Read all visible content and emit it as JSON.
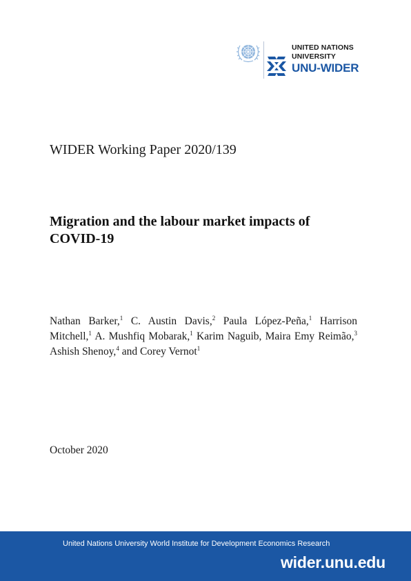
{
  "logo": {
    "emblem_icon": "un-emblem-icon",
    "unu_mark_icon": "unu-wider-mark-icon",
    "line1": "UNITED NATIONS",
    "line2": "UNIVERSITY",
    "line3": "UNU-WIDER",
    "emblem_color": "#8fb5dd",
    "brand_color": "#1b57a4"
  },
  "document": {
    "series": "WIDER Working Paper 2020/139",
    "title": "Migration and the labour market impacts of COVID-19",
    "authors": [
      {
        "name": "Nathan Barker,",
        "aff": "1"
      },
      {
        "name": "C. Austin Davis,",
        "aff": "2"
      },
      {
        "name": "Paula López-Peña,",
        "aff": "1"
      },
      {
        "name": "Harrison Mitchell,",
        "aff": "1"
      },
      {
        "name": "A. Mushfiq Mobarak,",
        "aff": "1"
      },
      {
        "name": "Karim Naguib, Maira Emy Reimão,",
        "aff": "3"
      },
      {
        "name": "Ashish Shenoy,",
        "aff": "4"
      },
      {
        "name": "and Corey Vernot",
        "aff": "1"
      }
    ],
    "date": "October 2020"
  },
  "footer": {
    "institute": "United Nations University World Institute for Development Economics Research",
    "url": "wider.unu.edu",
    "background_color": "#1b57a4"
  }
}
